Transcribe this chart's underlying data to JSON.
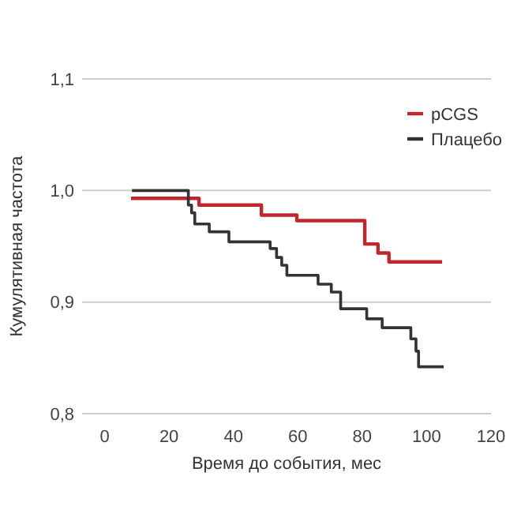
{
  "chart_data": {
    "type": "step",
    "xlabel": "Время до события, мес",
    "ylabel": "Кумулятивная частота",
    "xlim": [
      -7,
      120
    ],
    "xticks": [
      0,
      20,
      40,
      60,
      80,
      100,
      120
    ],
    "ylim": [
      0.8,
      1.1
    ],
    "yticks": [
      {
        "value": 0.8,
        "label": "0,8"
      },
      {
        "value": 0.9,
        "label": "0,9"
      },
      {
        "value": 1.0,
        "label": "1,0"
      },
      {
        "value": 1.1,
        "label": "1,1"
      }
    ],
    "grid": "y",
    "legend": "top right",
    "series": [
      {
        "name": "pCGS",
        "color": "#c0272d",
        "x": [
          8.2,
          29.3,
          48.7,
          59.7,
          80.8,
          84.9,
          88.3,
          104.8
        ],
        "values": [
          0.993,
          0.987,
          0.978,
          0.973,
          0.952,
          0.944,
          0.936,
          0.936
        ]
      },
      {
        "name": "Плацебо",
        "color": "#333333",
        "x": [
          8.5,
          26,
          27,
          28,
          32.5,
          38.6,
          51.4,
          53.4,
          55,
          56.6,
          66.3,
          70.4,
          73.3,
          81.4,
          86.2,
          95.1,
          96.7,
          97.5,
          105.3
        ],
        "values": [
          1.0,
          0.987,
          0.98,
          0.97,
          0.963,
          0.954,
          0.948,
          0.94,
          0.933,
          0.924,
          0.916,
          0.909,
          0.894,
          0.885,
          0.877,
          0.867,
          0.856,
          0.842,
          0.842
        ]
      }
    ]
  }
}
